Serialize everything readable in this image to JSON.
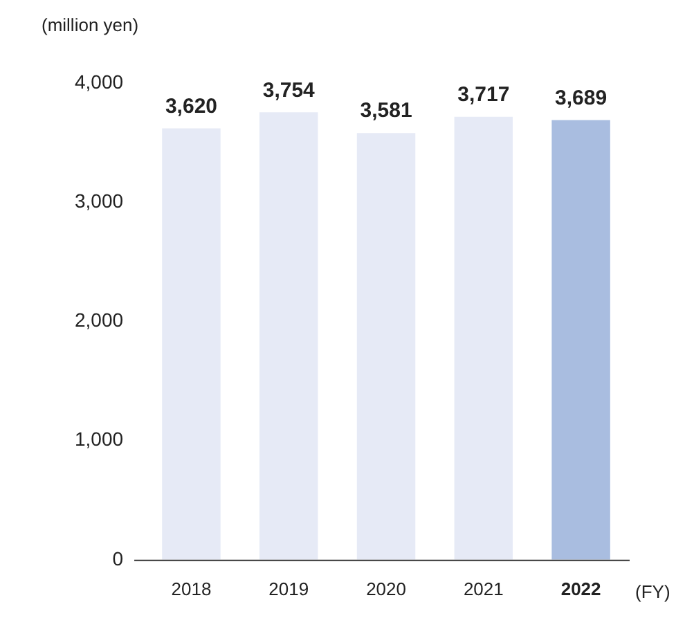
{
  "chart_data": {
    "type": "bar",
    "ylabel": "(million yen)",
    "xlabel": "(FY)",
    "categories": [
      "2018",
      "2019",
      "2020",
      "2021",
      "2022"
    ],
    "values": [
      3620,
      3754,
      3581,
      3717,
      3689
    ],
    "value_labels": [
      "3,620",
      "3,754",
      "3,581",
      "3,717",
      "3,689"
    ],
    "colors": [
      "#e6eaf6",
      "#e6eaf6",
      "#e6eaf6",
      "#e6eaf6",
      "#a9bde0"
    ],
    "ylim": [
      0,
      4000
    ],
    "yticks": [
      0,
      {
        "value": 1000,
        "label": "1,000"
      },
      {
        "value": 2000,
        "label": "2,000"
      },
      {
        "value": 3000,
        "label": "3,000"
      },
      {
        "value": 4000,
        "label": "4,000"
      }
    ],
    "grid": false,
    "legend": false
  }
}
